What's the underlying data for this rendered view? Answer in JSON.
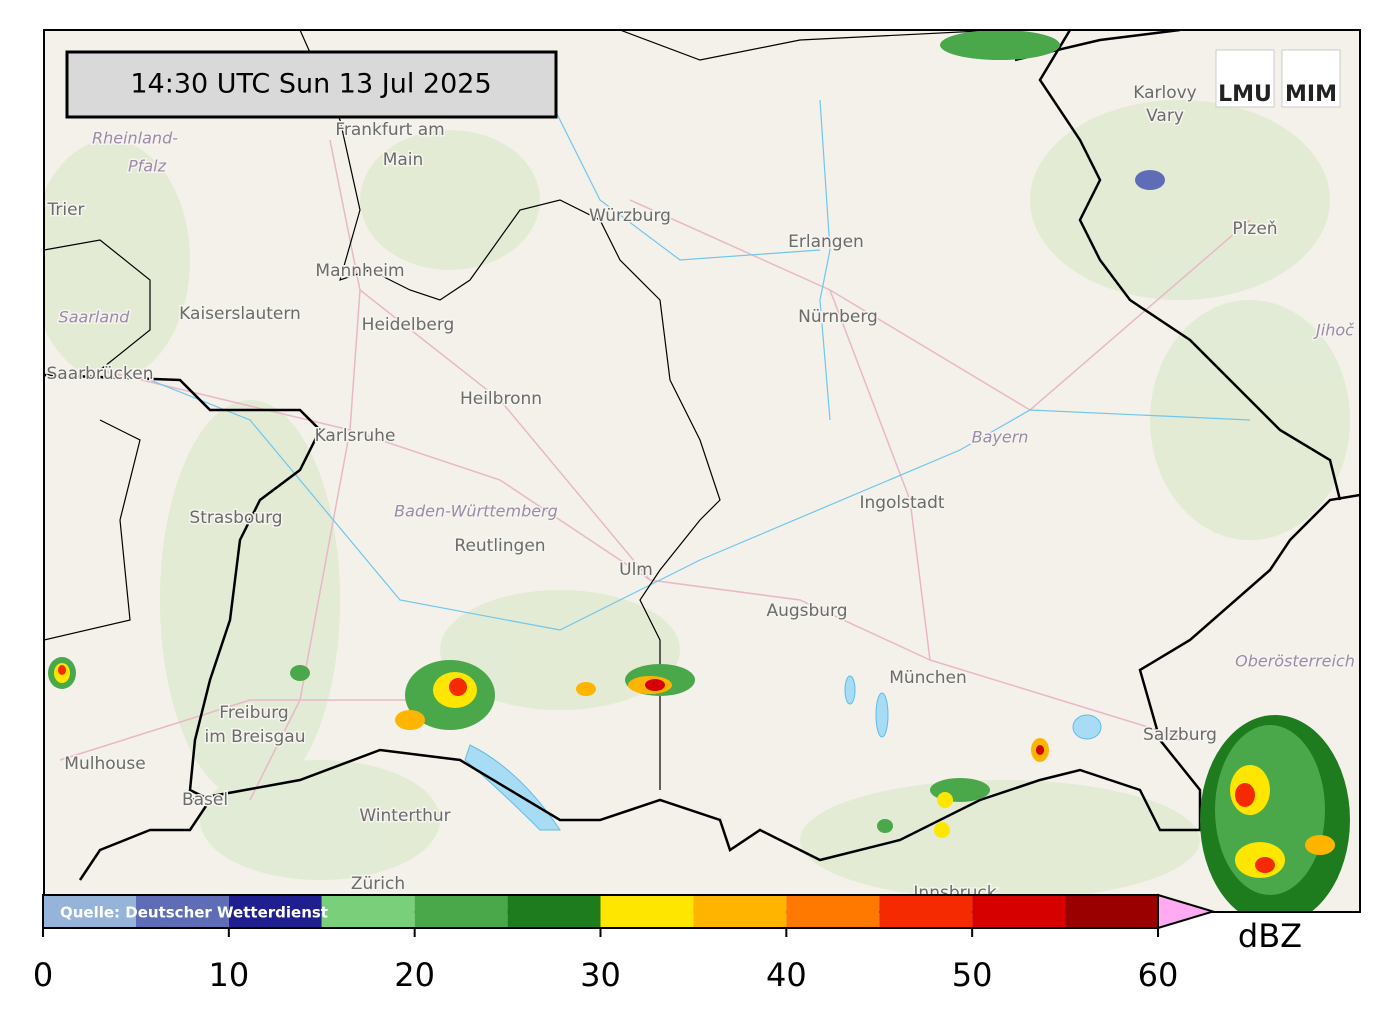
{
  "timestamp": "14:30 UTC  Sun 13 Jul 2025",
  "logos": [
    "LMU",
    "MIM"
  ],
  "source": "Quelle: Deutscher Wetterdienst",
  "places": [
    "Frankfurt am",
    "Main",
    "Rheinland-",
    "Pfalz",
    "Trier",
    "Mannheim",
    "Kaiserslautern",
    "Heidelberg",
    "Saarland",
    "Saarbrücken",
    "Würzburg",
    "Erlangen",
    "Nürnberg",
    "Karlovy",
    "Vary",
    "Plzeň",
    "Jihoč",
    "Heilbronn",
    "Karlsruhe",
    "Bayern",
    "Ingolstadt",
    "Strasbourg",
    "Baden-Württemberg",
    "Reutlingen",
    "Ulm",
    "Augsburg",
    "München",
    "Oberösterreich",
    "Freiburg",
    "im Breisgau",
    "Mulhouse",
    "Basel",
    "Winterthur",
    "Zürich",
    "Salzburg",
    "Innsbruck"
  ],
  "colorbar": {
    "bounds": [
      0,
      5,
      10,
      15,
      20,
      25,
      30,
      35,
      40,
      45,
      50,
      55,
      60
    ],
    "colors": [
      "#96b4da",
      "#5e6db5",
      "#1f1f8f",
      "#7ad07a",
      "#4aa84a",
      "#1e7b1e",
      "#ffe600",
      "#ffb400",
      "#ff7800",
      "#f52a00",
      "#d60000",
      "#9b0000"
    ],
    "extend_color": "#ffaaf2",
    "ticks": [
      0,
      10,
      20,
      30,
      40,
      50,
      60
    ],
    "label": "dBZ"
  }
}
